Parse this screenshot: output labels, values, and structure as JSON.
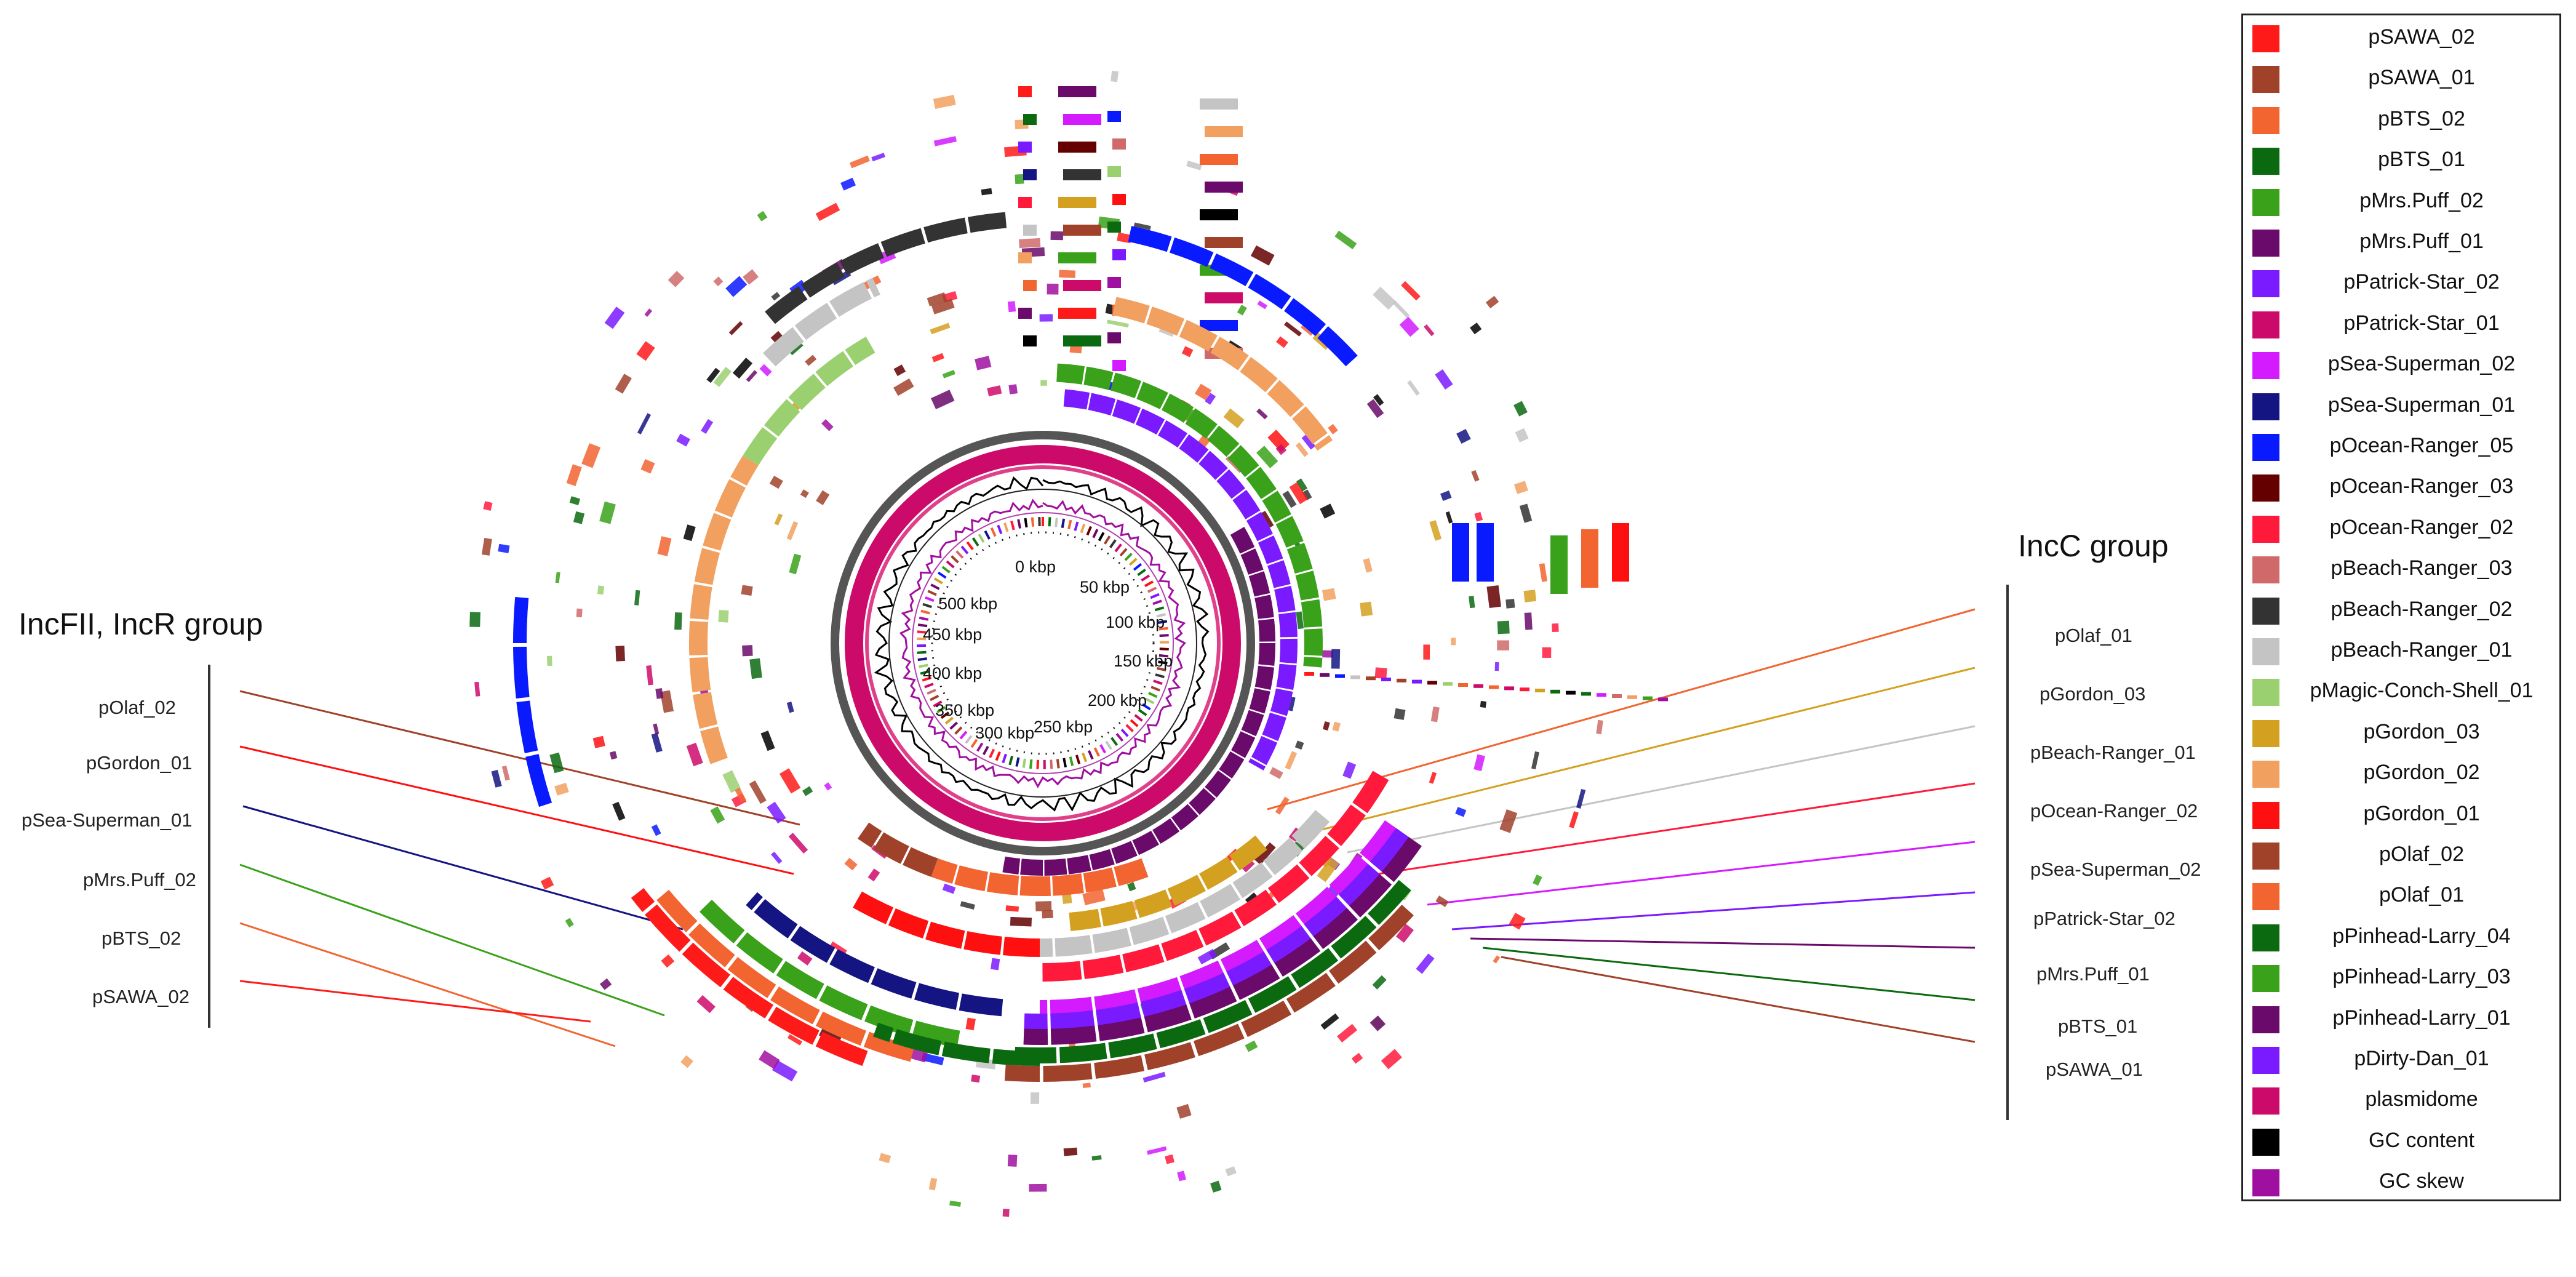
{
  "legend": {
    "items": [
      {
        "label": "pSAWA_02",
        "color": "#ff1a1a"
      },
      {
        "label": "pSAWA_01",
        "color": "#a0422a"
      },
      {
        "label": "pBTS_02",
        "color": "#f26430"
      },
      {
        "label": "pBTS_01",
        "color": "#0b6a10"
      },
      {
        "label": "pMrs.Puff_02",
        "color": "#3aa21a"
      },
      {
        "label": "pMrs.Puff_01",
        "color": "#6a0a6a"
      },
      {
        "label": "pPatrick-Star_02",
        "color": "#7a1aff"
      },
      {
        "label": "pPatrick-Star_01",
        "color": "#cc0a6a"
      },
      {
        "label": "pSea-Superman_02",
        "color": "#d41aff"
      },
      {
        "label": "pSea-Superman_01",
        "color": "#141482"
      },
      {
        "label": "pOcean-Ranger_05",
        "color": "#0a1aff"
      },
      {
        "label": "pOcean-Ranger_03",
        "color": "#640000"
      },
      {
        "label": "pOcean-Ranger_02",
        "color": "#ff1a3c"
      },
      {
        "label": "pBeach-Ranger_03",
        "color": "#d06a6a"
      },
      {
        "label": "pBeach-Ranger_02",
        "color": "#333333"
      },
      {
        "label": "pBeach-Ranger_01",
        "color": "#c4c4c4"
      },
      {
        "label": "pMagic-Conch-Shell_01",
        "color": "#9ad070"
      },
      {
        "label": "pGordon_03",
        "color": "#d4a020"
      },
      {
        "label": "pGordon_02",
        "color": "#f2a060"
      },
      {
        "label": "pGordon_01",
        "color": "#ff1010"
      },
      {
        "label": "pOlaf_02",
        "color": "#a0422a"
      },
      {
        "label": "pOlaf_01",
        "color": "#f26430"
      },
      {
        "label": "pPinhead-Larry_04",
        "color": "#0b6a10"
      },
      {
        "label": "pPinhead-Larry_03",
        "color": "#3aa21a"
      },
      {
        "label": "pPinhead-Larry_01",
        "color": "#6a0a6a"
      },
      {
        "label": "pDirty-Dan_01",
        "color": "#7a1aff"
      },
      {
        "label": "plasmidome",
        "color": "#cc0a6a"
      },
      {
        "label": "GC content",
        "color": "#000000"
      },
      {
        "label": "GC skew",
        "color": "#a010a0"
      }
    ]
  },
  "left_group": {
    "title": "IncFII, IncR group",
    "labels": [
      "pOlaf_02",
      "pGordon_01",
      "pSea-Superman_01",
      "pMrs.Puff_02",
      "pBTS_02",
      "pSAWA_02"
    ]
  },
  "right_group": {
    "title": "IncC group",
    "labels": [
      "pOlaf_01",
      "pGordon_03",
      "pBeach-Ranger_01",
      "pOcean-Ranger_02",
      "pSea-Superman_02",
      "pPatrick-Star_02",
      "pMrs.Puff_01",
      "pBTS_01",
      "pSAWA_01"
    ]
  },
  "ring_ticks": [
    "0 kbp",
    "50 kbp",
    "100 kbp",
    "150 kbp",
    "200 kbp",
    "250 kbp",
    "300 kbp",
    "350 kbp",
    "400 kbp",
    "450 kbp",
    "500 kbp"
  ]
}
